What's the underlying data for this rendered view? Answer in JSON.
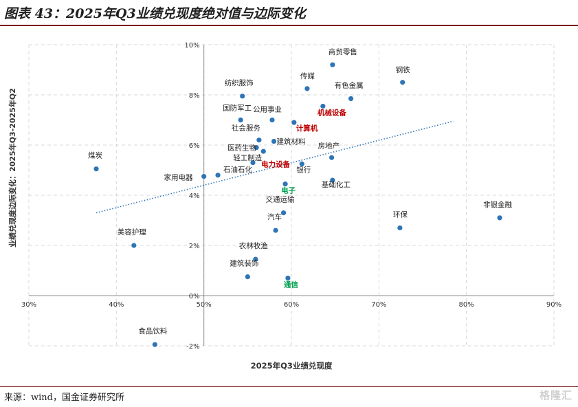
{
  "header": {
    "title": "图表 43：2025年Q3业绩兑现度绝对值与边际变化"
  },
  "footer": {
    "source": "来源：wind，国金证券研究所",
    "watermark": "格隆汇"
  },
  "chart_data": {
    "type": "scatter",
    "xlabel": "2025年Q3业绩兑现度",
    "ylabel": "业绩兑现度边际变化：2025年Q3-2025年Q2",
    "xlim": [
      30,
      90
    ],
    "ylim": [
      -2,
      10
    ],
    "x_ticks": [
      "30%",
      "40%",
      "50%",
      "60%",
      "70%",
      "80%",
      "90%"
    ],
    "y_ticks": [
      "-2%",
      "0%",
      "2%",
      "4%",
      "6%",
      "8%",
      "10%"
    ],
    "grid": true,
    "trendline": {
      "type": "linear",
      "x": [
        37.7,
        78.5
      ],
      "y": [
        3.3,
        6.95
      ]
    },
    "colors": {
      "point": "#2e75b6",
      "trend": "#2e75b6",
      "highlight_red": "#c00000",
      "highlight_green": "#00a050"
    },
    "points": [
      {
        "label": "商贸零售",
        "x": 64.7,
        "y": 9.2
      },
      {
        "label": "钢铁",
        "x": 72.7,
        "y": 8.5
      },
      {
        "label": "传媒",
        "x": 61.8,
        "y": 8.25
      },
      {
        "label": "有色金属",
        "x": 66.8,
        "y": 7.85
      },
      {
        "label": "纺织服饰",
        "x": 54.4,
        "y": 7.95
      },
      {
        "label": "机械设备",
        "x": 63.6,
        "y": 7.55,
        "highlight": "red"
      },
      {
        "label": "国防军工",
        "x": 54.2,
        "y": 7.0
      },
      {
        "label": "公用事业",
        "x": 57.8,
        "y": 7.0
      },
      {
        "label": "计算机",
        "x": 60.3,
        "y": 6.9,
        "highlight": "red"
      },
      {
        "label": "社会服务",
        "x": 56.3,
        "y": 6.2
      },
      {
        "label": "建筑材料",
        "x": 58.0,
        "y": 6.15
      },
      {
        "label": "医药生物",
        "x": 56.0,
        "y": 5.9
      },
      {
        "label": "轻工制造",
        "x": 56.8,
        "y": 5.75
      },
      {
        "label": "电力设备",
        "x": 55.6,
        "y": 5.3,
        "highlight": "red"
      },
      {
        "label": "房地产",
        "x": 64.6,
        "y": 5.5
      },
      {
        "label": "银行",
        "x": 61.2,
        "y": 5.25
      },
      {
        "label": "煤炭",
        "x": 37.7,
        "y": 5.05
      },
      {
        "label": "家用电器",
        "x": 50.0,
        "y": 4.75
      },
      {
        "label": "石油石化",
        "x": 51.6,
        "y": 4.8
      },
      {
        "label": "基础化工",
        "x": 64.7,
        "y": 4.6
      },
      {
        "label": "电子",
        "x": 59.3,
        "y": 4.45,
        "highlight": "green"
      },
      {
        "label": "交通运输",
        "x": 59.1,
        "y": 3.3
      },
      {
        "label": "汽车",
        "x": 58.2,
        "y": 2.6
      },
      {
        "label": "环保",
        "x": 72.4,
        "y": 2.7
      },
      {
        "label": "非银金融",
        "x": 83.8,
        "y": 3.1
      },
      {
        "label": "美容护理",
        "x": 42.0,
        "y": 2.0
      },
      {
        "label": "农林牧渔",
        "x": 55.9,
        "y": 1.45
      },
      {
        "label": "建筑装饰",
        "x": 55.0,
        "y": 0.75
      },
      {
        "label": "通信",
        "x": 59.6,
        "y": 0.7,
        "highlight": "green"
      },
      {
        "label": "食品饮料",
        "x": 44.4,
        "y": -1.95
      }
    ]
  }
}
